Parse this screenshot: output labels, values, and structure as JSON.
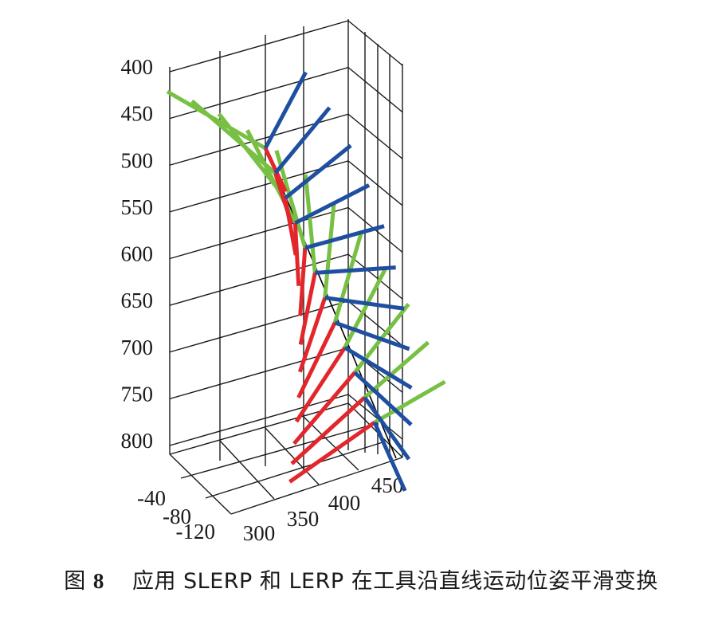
{
  "caption": {
    "label": "图",
    "number": "8",
    "text": "应用 SLERP 和 LERP 在工具沿直线运动位姿平滑变换"
  },
  "chart_data": {
    "type": "3d-line",
    "z_axis": {
      "range": [
        400,
        800
      ],
      "ticks": [
        "400",
        "450",
        "500",
        "550",
        "600",
        "650",
        "700",
        "750",
        "800"
      ]
    },
    "y_axis": {
      "range": [
        -120,
        -40
      ],
      "ticks": [
        "-40",
        "-80",
        "-120"
      ]
    },
    "x_axis": {
      "range": [
        300,
        450
      ],
      "ticks": [
        "300",
        "350",
        "400",
        "450"
      ]
    },
    "grid": true,
    "path_color": "#000000",
    "series_colors": {
      "green": "#77c043",
      "red": "#e2262b",
      "blue": "#1f4fa0"
    }
  }
}
